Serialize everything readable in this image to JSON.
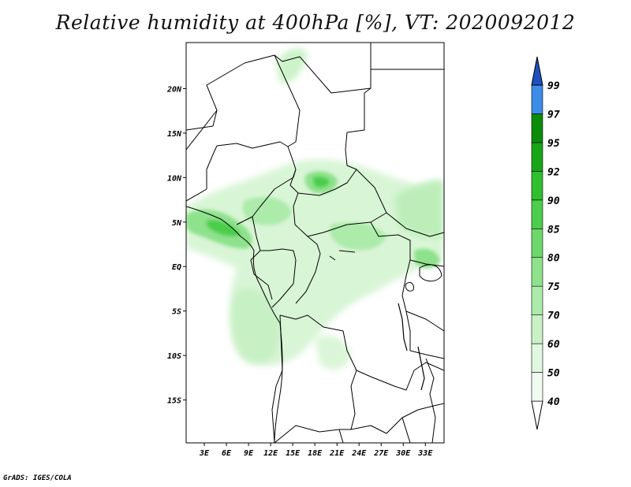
{
  "title": "Relative humidity at 400hPa [%], VT: 2020092012",
  "credit": "GrADS: IGES/COLA",
  "map": {
    "lon_range": [
      0,
      35
    ],
    "lat_range": [
      -20,
      25
    ],
    "x_ticks": [
      "3E",
      "6E",
      "9E",
      "12E",
      "15E",
      "18E",
      "21E",
      "24E",
      "27E",
      "30E",
      "33E"
    ],
    "y_ticks": [
      "20N",
      "15N",
      "10N",
      "5N",
      "EQ",
      "5S",
      "10S",
      "15S"
    ]
  },
  "colorbar": {
    "levels": [
      "40",
      "50",
      "60",
      "70",
      "75",
      "80",
      "85",
      "90",
      "92",
      "95",
      "97",
      "99"
    ],
    "colors": [
      "#f0fcf0",
      "#e0f8df",
      "#c8f2c5",
      "#acebaa",
      "#8ee28c",
      "#6cd86b",
      "#4ccd4c",
      "#2fbf2f",
      "#18a618",
      "#0a8c0a",
      "#3c8ce8",
      "#1e6cd8",
      "#1e50c0"
    ]
  },
  "colors": {
    "frame": "#000000",
    "land_boundary": "#000000"
  }
}
